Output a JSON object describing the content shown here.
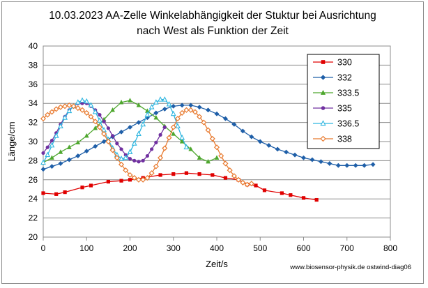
{
  "chart_data": {
    "type": "line",
    "title_lines": [
      "10.03.2023  AA-Zelle Winkelabhängigkeit der Stuktur bei Ausrichtung",
      "nach West als Funktion der Zeit"
    ],
    "xlabel": "Zeit/s",
    "ylabel": "Länge/cm",
    "xlim": [
      0,
      800
    ],
    "ylim": [
      20,
      40
    ],
    "x_ticks": [
      0,
      100,
      200,
      300,
      400,
      500,
      600,
      700,
      800
    ],
    "y_ticks": [
      20,
      22,
      24,
      26,
      28,
      30,
      32,
      34,
      36,
      38,
      40
    ],
    "grid": "horizontal",
    "legend_position": "right",
    "footnote": "www.biosensor-physik.de  ostwind-diag06",
    "series": [
      {
        "name": "330",
        "color": "#e00000",
        "marker": "square",
        "x": [
          0,
          30,
          50,
          90,
          110,
          150,
          180,
          200,
          230,
          270,
          300,
          330,
          360,
          390,
          420,
          450,
          470,
          490,
          510,
          550,
          570,
          600,
          630
        ],
        "y": [
          24.6,
          24.5,
          24.7,
          25.2,
          25.4,
          25.8,
          25.9,
          26.0,
          26.2,
          26.5,
          26.6,
          26.7,
          26.6,
          26.5,
          26.2,
          26.0,
          25.5,
          25.4,
          24.9,
          24.6,
          24.4,
          24.1,
          23.9
        ]
      },
      {
        "name": "332",
        "color": "#1f5fa8",
        "marker": "diamond",
        "x": [
          0,
          20,
          40,
          60,
          80,
          100,
          120,
          140,
          160,
          180,
          200,
          220,
          240,
          260,
          280,
          300,
          320,
          340,
          360,
          380,
          400,
          420,
          440,
          460,
          480,
          500,
          520,
          540,
          560,
          580,
          600,
          620,
          640,
          660,
          680,
          700,
          720,
          740,
          760
        ],
        "y": [
          27.1,
          27.4,
          27.7,
          28.1,
          28.5,
          29.0,
          29.5,
          30.0,
          30.5,
          31.0,
          31.5,
          32.0,
          32.5,
          33.0,
          33.4,
          33.7,
          33.8,
          33.8,
          33.6,
          33.3,
          32.9,
          32.4,
          31.8,
          31.1,
          30.5,
          30.0,
          29.6,
          29.2,
          28.9,
          28.6,
          28.3,
          28.1,
          27.9,
          27.7,
          27.5,
          27.5,
          27.5,
          27.5,
          27.6
        ]
      },
      {
        "name": "333.5",
        "color": "#4ea72e",
        "marker": "triangle",
        "x": [
          0,
          20,
          40,
          60,
          80,
          100,
          120,
          140,
          160,
          180,
          200,
          220,
          240,
          260,
          280,
          300,
          320,
          340,
          360,
          380,
          400
        ],
        "y": [
          27.8,
          28.3,
          28.9,
          29.4,
          29.9,
          30.6,
          31.4,
          32.3,
          33.3,
          34.1,
          34.3,
          33.8,
          33.2,
          32.5,
          31.6,
          30.8,
          30.0,
          29.2,
          28.3,
          27.9,
          28.3
        ]
      },
      {
        "name": "335",
        "color": "#7030a0",
        "marker": "x",
        "x": [
          0,
          10,
          20,
          30,
          40,
          50,
          60,
          70,
          80,
          90,
          100,
          110,
          120,
          130,
          140,
          150,
          160,
          170,
          180,
          190,
          200,
          210,
          220,
          230,
          240,
          250,
          260,
          270,
          280
        ],
        "y": [
          28.8,
          29.4,
          30.1,
          30.9,
          31.8,
          32.6,
          33.3,
          33.7,
          34.0,
          34.0,
          34.0,
          33.7,
          33.3,
          32.8,
          32.1,
          31.4,
          30.6,
          29.8,
          29.2,
          28.6,
          28.2,
          28.0,
          27.9,
          28.0,
          28.5,
          29.2,
          29.9,
          30.7,
          31.5
        ]
      },
      {
        "name": "336.5",
        "color": "#2fb6e0",
        "marker": "triangle-open",
        "x": [
          0,
          10,
          20,
          30,
          40,
          50,
          60,
          70,
          80,
          90,
          100,
          110,
          120,
          130,
          140,
          150,
          160,
          170,
          180,
          190,
          200,
          210,
          220,
          230,
          240,
          250,
          260,
          270,
          280,
          290,
          300,
          310,
          320,
          330
        ],
        "y": [
          27.8,
          28.6,
          29.6,
          30.6,
          31.6,
          32.5,
          33.2,
          33.7,
          34.1,
          34.3,
          34.2,
          33.8,
          33.1,
          32.2,
          31.2,
          30.2,
          29.3,
          28.6,
          28.2,
          28.3,
          28.9,
          29.8,
          30.8,
          31.8,
          32.8,
          33.6,
          34.1,
          34.4,
          34.4,
          33.9,
          32.9,
          31.6,
          30.4,
          29.4
        ]
      },
      {
        "name": "338",
        "color": "#e87a2f",
        "marker": "diamond-open",
        "x": [
          0,
          10,
          20,
          30,
          40,
          50,
          60,
          70,
          80,
          90,
          100,
          110,
          120,
          130,
          140,
          150,
          160,
          170,
          180,
          190,
          200,
          210,
          220,
          230,
          240,
          250,
          260,
          270,
          280,
          290,
          300,
          310,
          320,
          330,
          340,
          350,
          360,
          370,
          380,
          390,
          400,
          410,
          420,
          430,
          440,
          450,
          460,
          470,
          480
        ],
        "y": [
          32.4,
          32.8,
          33.1,
          33.4,
          33.6,
          33.7,
          33.8,
          33.7,
          33.5,
          33.3,
          33.0,
          32.6,
          32.1,
          31.5,
          30.8,
          30.0,
          29.1,
          28.3,
          27.6,
          27.0,
          26.5,
          26.2,
          26.0,
          26.0,
          26.2,
          26.7,
          27.4,
          28.3,
          29.3,
          30.4,
          31.5,
          32.4,
          33.0,
          33.3,
          33.3,
          33.1,
          32.6,
          32.0,
          31.2,
          30.3,
          29.4,
          28.5,
          27.7,
          27.0,
          26.4,
          26.0,
          25.7,
          25.5,
          25.6
        ]
      }
    ]
  }
}
